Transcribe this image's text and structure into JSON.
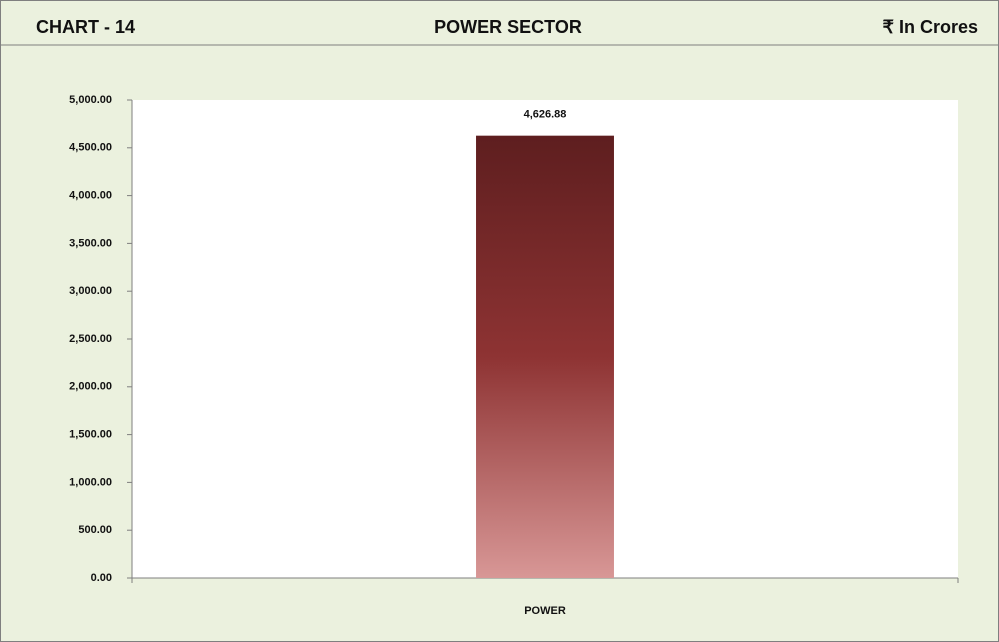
{
  "chart_data": {
    "type": "bar",
    "chart_label": "CHART - 14",
    "title": "POWER SECTOR",
    "unit": "₹ In Crores",
    "categories": [
      "POWER"
    ],
    "values": [
      4626.88
    ],
    "value_labels": [
      "4,626.88"
    ],
    "gradient": [
      "#5e1e1f",
      "#8e3333",
      "#d89796"
    ],
    "ylim": [
      0,
      5000
    ],
    "yticks": [
      {
        "value": 0,
        "label": "0.00"
      },
      {
        "value": 500,
        "label": "500.00"
      },
      {
        "value": 1000,
        "label": "1,000.00"
      },
      {
        "value": 1500,
        "label": "1,500.00"
      },
      {
        "value": 2000,
        "label": "2,000.00"
      },
      {
        "value": 2500,
        "label": "2,500.00"
      },
      {
        "value": 3000,
        "label": "3,000.00"
      },
      {
        "value": 3500,
        "label": "3,500.00"
      },
      {
        "value": 4000,
        "label": "4,000.00"
      },
      {
        "value": 4500,
        "label": "4,500.00"
      },
      {
        "value": 5000,
        "label": "5,000.00"
      }
    ],
    "grid": false
  }
}
